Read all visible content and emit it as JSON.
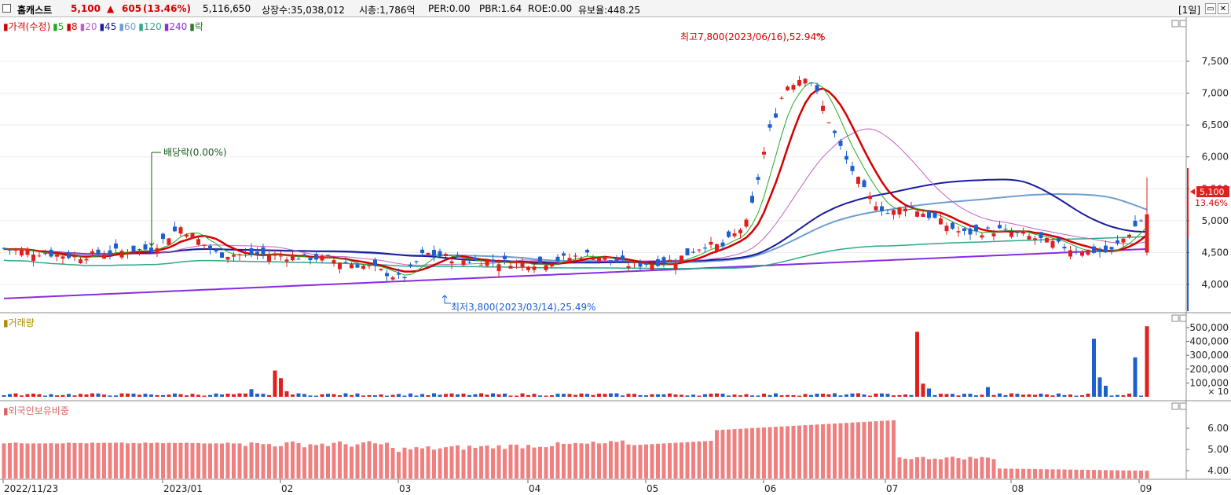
{
  "header": {
    "name": "홈캐스트",
    "price": "5,100",
    "change_arrow": "▲",
    "change": "605",
    "change_pct": "(13.46%)",
    "volume": "5,116,650",
    "listed": "상장수:35,038,012",
    "mcap": "시총:1,786억",
    "per": "PER:0.00",
    "pbr": "PBR:1.64",
    "roe": "ROE:0.00",
    "float": "유보율:448.25",
    "period": "[1일]"
  },
  "price_panel": {
    "legend": [
      {
        "text": "가격(수정)",
        "color": "#d40000"
      },
      {
        "text": "5",
        "color": "#22aa22"
      },
      {
        "text": "8",
        "color": "#d40000"
      },
      {
        "text": "20",
        "color": "#c060c0"
      },
      {
        "text": "45",
        "color": "#1a1aa0"
      },
      {
        "text": "60",
        "color": "#6f9ecf"
      },
      {
        "text": "120",
        "color": "#2fa88a"
      },
      {
        "text": "240",
        "color": "#8a2be2"
      },
      {
        "text": "락",
        "color": "#2a7a2a"
      }
    ],
    "y_ticks": [
      "7,500",
      "7,000",
      "6,500",
      "6,000",
      "5,500",
      "5,000",
      "4,500",
      "4,000"
    ],
    "annotation_high": "최고7,800(2023/06/16),52.94%",
    "annotation_low": "최저3,800(2023/03/14),25.49%",
    "annotation_dividend": "배당락(0.00%)",
    "current_price_tag": "5,100",
    "current_pct_tag": "13.46%"
  },
  "volume_panel": {
    "title": "거래량",
    "y_ticks": [
      "500,000",
      "400,000",
      "300,000",
      "200,000",
      "100,000"
    ],
    "unit": "× 10"
  },
  "foreign_panel": {
    "title": "외국인보유비중",
    "y_ticks": [
      "6.00",
      "5.00",
      "4.00"
    ]
  },
  "x_axis": [
    "2022/11/23",
    "2023/01",
    "02",
    "03",
    "04",
    "05",
    "06",
    "07",
    "08",
    "09"
  ],
  "colors": {
    "up": "#e0201c",
    "down": "#1e5fcf",
    "foreign": "#f08080"
  }
}
